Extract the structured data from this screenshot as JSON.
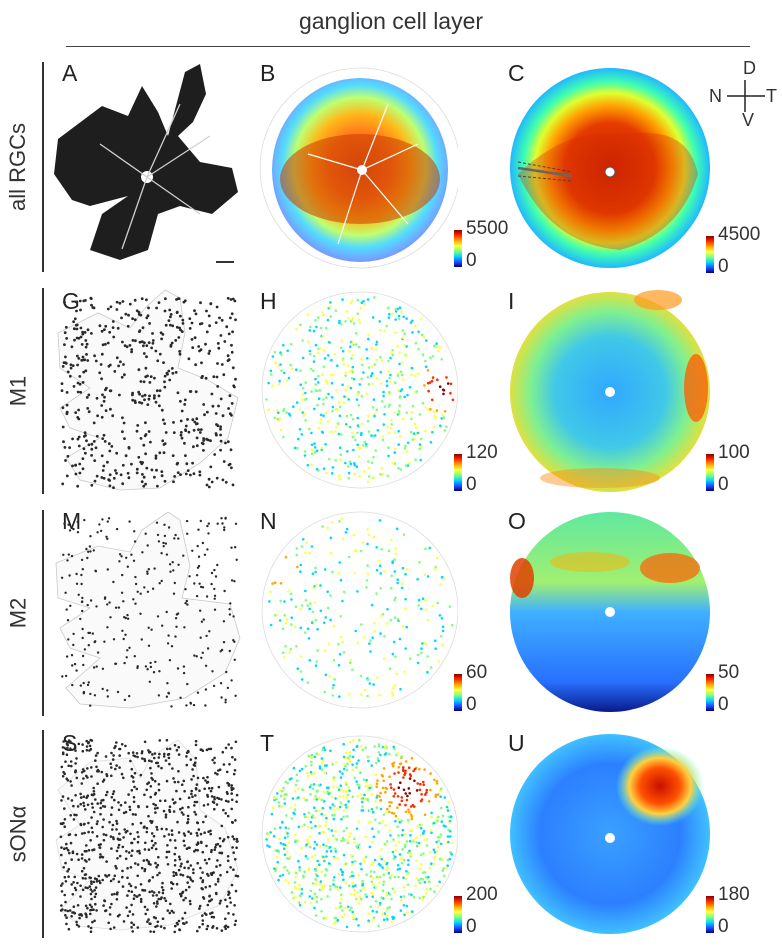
{
  "header": {
    "title": "ganglion cell layer"
  },
  "compass": {
    "dorsal": "D",
    "nasal": "N",
    "temporal": "T",
    "ventral": "V"
  },
  "rows": [
    {
      "label": "all RGCs",
      "panels": [
        "A",
        "B",
        "C"
      ],
      "colorbars": [
        {
          "max": "5500",
          "min": "0"
        },
        {
          "max": "4500",
          "min": "0"
        }
      ]
    },
    {
      "label": "M1",
      "panels": [
        "G",
        "H",
        "I"
      ],
      "colorbars": [
        {
          "max": "120",
          "min": "0"
        },
        {
          "max": "100",
          "min": "0"
        }
      ]
    },
    {
      "label": "M2",
      "panels": [
        "M",
        "N",
        "O"
      ],
      "colorbars": [
        {
          "max": "60",
          "min": "0"
        },
        {
          "max": "50",
          "min": "0"
        }
      ]
    },
    {
      "label": "sONα",
      "panels": [
        "S",
        "T",
        "U"
      ],
      "colorbars": [
        {
          "max": "200",
          "min": "0"
        },
        {
          "max": "180",
          "min": "0"
        }
      ]
    }
  ],
  "colors": {
    "colormap": [
      "#00008b",
      "#2050ff",
      "#00d8ff",
      "#7fff7f",
      "#ffff40",
      "#ffa500",
      "#ff2a00",
      "#8b0000"
    ]
  }
}
